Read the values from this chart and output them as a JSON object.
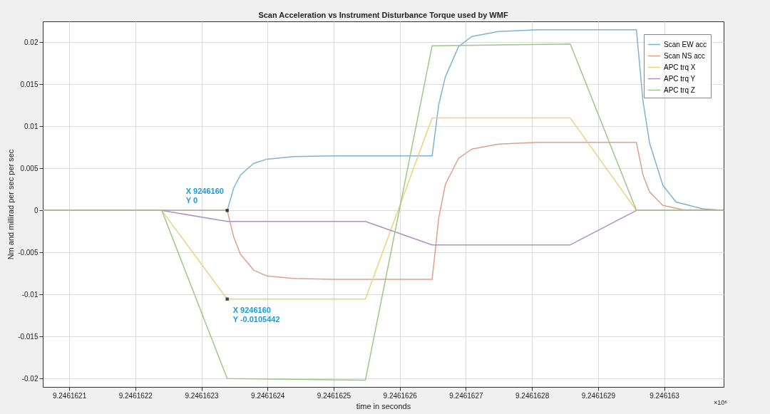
{
  "chart_data": {
    "type": "line",
    "title": "Scan Acceleration vs Instrument Disturbance Torque used by WMF",
    "xlabel": "time in seconds",
    "ylabel": "Nm and millirad per sec per sec",
    "xlim": [
      9.24616206,
      9.24616309
    ],
    "xticks": [
      9.2461621,
      9.2461622,
      9.2461623,
      9.2461624,
      9.2461625,
      9.2461626,
      9.2461627,
      9.2461628,
      9.2461629,
      9.246163
    ],
    "ylim": [
      -0.021,
      0.0225
    ],
    "yticks": [
      -0.02,
      -0.015,
      -0.01,
      -0.005,
      0,
      0.005,
      0.01,
      0.015,
      0.02
    ],
    "grid": true,
    "legend": "top right",
    "line_style": "solid",
    "marker": "none",
    "series": [
      {
        "name": "Scan EW acc",
        "color": "#7fb2d5",
        "x": [
          9.24616206,
          9.246162339,
          9.246162349,
          9.246162359,
          9.246162379,
          9.246162399,
          9.246162439,
          9.246162499,
          9.246162649,
          9.246162659,
          9.246162669,
          9.246162689,
          9.246162709,
          9.246162749,
          9.246162809,
          9.246162958,
          9.246162968,
          9.246162978,
          9.246162998,
          9.246163018,
          9.246163058,
          9.24616309
        ],
        "values": [
          0,
          0,
          0.0027,
          0.0042,
          0.0056,
          0.0061,
          0.0064,
          0.0065,
          0.0065,
          0.0126,
          0.0159,
          0.0195,
          0.0207,
          0.0213,
          0.0215,
          0.0215,
          0.013,
          0.008,
          0.003,
          0.001,
          0.0002,
          0
        ]
      },
      {
        "name": "Scan NS acc",
        "color": "#e0a088",
        "x": [
          9.24616206,
          9.246162339,
          9.246162349,
          9.246162359,
          9.246162379,
          9.246162399,
          9.246162439,
          9.246162499,
          9.246162649,
          9.246162659,
          9.246162669,
          9.246162689,
          9.246162709,
          9.246162749,
          9.246162809,
          9.246162958,
          9.246162968,
          9.246162978,
          9.246162998,
          9.246163028,
          9.24616309
        ],
        "values": [
          0,
          0,
          -0.0032,
          -0.0052,
          -0.0071,
          -0.0078,
          -0.0081,
          -0.0082,
          -0.0082,
          -0.0009,
          0.0031,
          0.0062,
          0.0073,
          0.0079,
          0.0081,
          0.0081,
          0.0042,
          0.0022,
          0.0006,
          0.0001,
          0
        ]
      },
      {
        "name": "APC trq X",
        "color": "#f0d080",
        "x": [
          9.24616206,
          9.24616224,
          9.246162339,
          9.246162548,
          9.246162649,
          9.246162858,
          9.246162958,
          9.24616309
        ],
        "values": [
          0,
          0,
          -0.0105442,
          -0.0105442,
          0.011,
          0.011,
          0,
          0
        ]
      },
      {
        "name": "APC trq Y",
        "color": "#b090c0",
        "x": [
          9.24616206,
          9.24616224,
          9.246162339,
          9.246162548,
          9.246162649,
          9.246162858,
          9.246162958,
          9.24616309
        ],
        "values": [
          0,
          0,
          -0.0013,
          -0.0013,
          -0.0041,
          -0.0041,
          0,
          0
        ]
      },
      {
        "name": "APC trq Z",
        "color": "#9cc886",
        "x": [
          9.24616206,
          9.24616224,
          9.246162339,
          9.246162548,
          9.246162649,
          9.246162858,
          9.246162958,
          9.24616309
        ],
        "values": [
          0,
          0,
          -0.02,
          -0.0202,
          0.0196,
          0.0198,
          0,
          0
        ]
      }
    ],
    "annotations": [
      {
        "text": "X 9246160\nY 0",
        "x": 9.246162339,
        "y": 0
      },
      {
        "text": "X 9246160\nY -0.0105442",
        "x": 9.246162339,
        "y": -0.0105442
      },
      "×10⁶"
    ]
  }
}
